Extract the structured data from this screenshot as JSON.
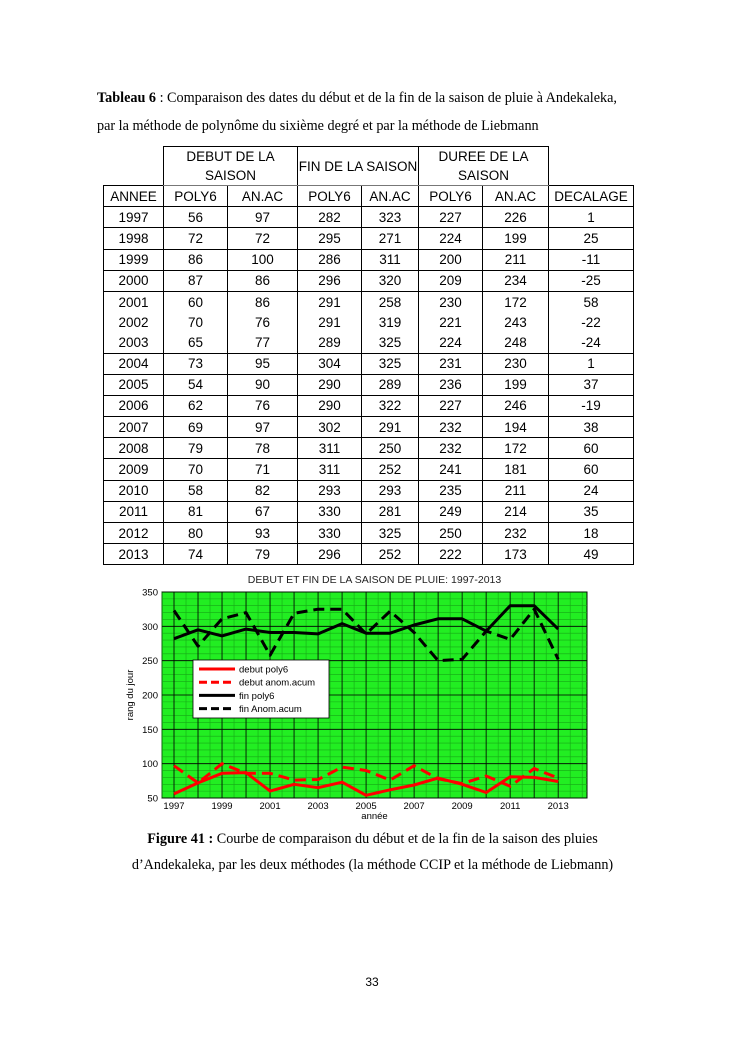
{
  "table_caption": {
    "label": "Tableau 6",
    "text_line1": " : Comparaison des dates du début et de la fin de la saison de pluie à Andekaleka,",
    "text_line2": "par la méthode de polynôme du sixième degré et par la méthode de Liebmann"
  },
  "table": {
    "group_headers": [
      "DEBUT DE LA SAISON",
      "FIN DE LA SAISON",
      "DUREE DE LA SAISON"
    ],
    "columns": [
      "ANNEE",
      "POLY6",
      "AN.AC",
      "POLY6",
      "AN.AC",
      "POLY6",
      "AN.AC",
      "DECALAGE"
    ],
    "rows": [
      [
        "1997",
        "56",
        "97",
        "282",
        "323",
        "227",
        "226",
        "1"
      ],
      [
        "1998",
        "72",
        "72",
        "295",
        "271",
        "224",
        "199",
        "25"
      ],
      [
        "1999",
        "86",
        "100",
        "286",
        "311",
        "200",
        "211",
        "-11"
      ],
      [
        "2000",
        "87",
        "86",
        "296",
        "320",
        "209",
        "234",
        "-25"
      ],
      [
        "2001",
        "60",
        "86",
        "291",
        "258",
        "230",
        "172",
        "58"
      ],
      [
        "2002",
        "70",
        "76",
        "291",
        "319",
        "221",
        "243",
        "-22"
      ],
      [
        "2003",
        "65",
        "77",
        "289",
        "325",
        "224",
        "248",
        "-24"
      ],
      [
        "2004",
        "73",
        "95",
        "304",
        "325",
        "231",
        "230",
        "1"
      ],
      [
        "2005",
        "54",
        "90",
        "290",
        "289",
        "236",
        "199",
        "37"
      ],
      [
        "2006",
        "62",
        "76",
        "290",
        "322",
        "227",
        "246",
        "-19"
      ],
      [
        "2007",
        "69",
        "97",
        "302",
        "291",
        "232",
        "194",
        "38"
      ],
      [
        "2008",
        "79",
        "78",
        "311",
        "250",
        "232",
        "172",
        "60"
      ],
      [
        "2009",
        "70",
        "71",
        "311",
        "252",
        "241",
        "181",
        "60"
      ],
      [
        "2010",
        "58",
        "82",
        "293",
        "293",
        "235",
        "211",
        "24"
      ],
      [
        "2011",
        "81",
        "67",
        "330",
        "281",
        "249",
        "214",
        "35"
      ],
      [
        "2012",
        "80",
        "93",
        "330",
        "325",
        "250",
        "232",
        "18"
      ],
      [
        "2013",
        "74",
        "79",
        "296",
        "252",
        "222",
        "173",
        "49"
      ]
    ]
  },
  "chart_data": {
    "type": "line",
    "title": "DEBUT ET FIN DE LA SAISON DE PLUIE: 1997-2013",
    "xlabel": "année",
    "ylabel": "rang du jour",
    "xlim": [
      1996.5,
      2014.2
    ],
    "ylim": [
      50,
      350
    ],
    "x": [
      1997,
      1998,
      1999,
      2000,
      2001,
      2002,
      2003,
      2004,
      2005,
      2006,
      2007,
      2008,
      2009,
      2010,
      2011,
      2012,
      2013
    ],
    "x_ticks": [
      1997,
      1999,
      2001,
      2003,
      2005,
      2007,
      2009,
      2011,
      2013
    ],
    "y_ticks": [
      50,
      100,
      150,
      200,
      250,
      300,
      350
    ],
    "background": "#22ee22",
    "grid": true,
    "legend_position": "center-left",
    "series": [
      {
        "name": "debut  poly6",
        "color": "#ff0000",
        "dash": false,
        "values": [
          56,
          72,
          86,
          87,
          60,
          70,
          65,
          73,
          54,
          62,
          69,
          79,
          70,
          58,
          81,
          80,
          74
        ]
      },
      {
        "name": "debut anom.acum",
        "color": "#ff0000",
        "dash": true,
        "values": [
          97,
          72,
          100,
          86,
          86,
          76,
          77,
          95,
          90,
          76,
          97,
          78,
          71,
          82,
          67,
          93,
          79
        ]
      },
      {
        "name": "fin poly6",
        "color": "#000000",
        "dash": false,
        "values": [
          282,
          295,
          286,
          296,
          291,
          291,
          289,
          304,
          290,
          290,
          302,
          311,
          311,
          293,
          330,
          330,
          296
        ]
      },
      {
        "name": "fin Anom.acum",
        "color": "#000000",
        "dash": true,
        "values": [
          323,
          271,
          311,
          320,
          258,
          319,
          325,
          325,
          289,
          322,
          291,
          250,
          252,
          293,
          281,
          325,
          252
        ]
      }
    ]
  },
  "figure_caption": {
    "label": "Figure 41 :",
    "text_line1": " Courbe de comparaison du début et de la fin de la saison  des pluies",
    "text_line2": "d’Andekaleka, par les deux méthodes (la méthode CCIP et la méthode de Liebmann)"
  },
  "page_number": "33"
}
